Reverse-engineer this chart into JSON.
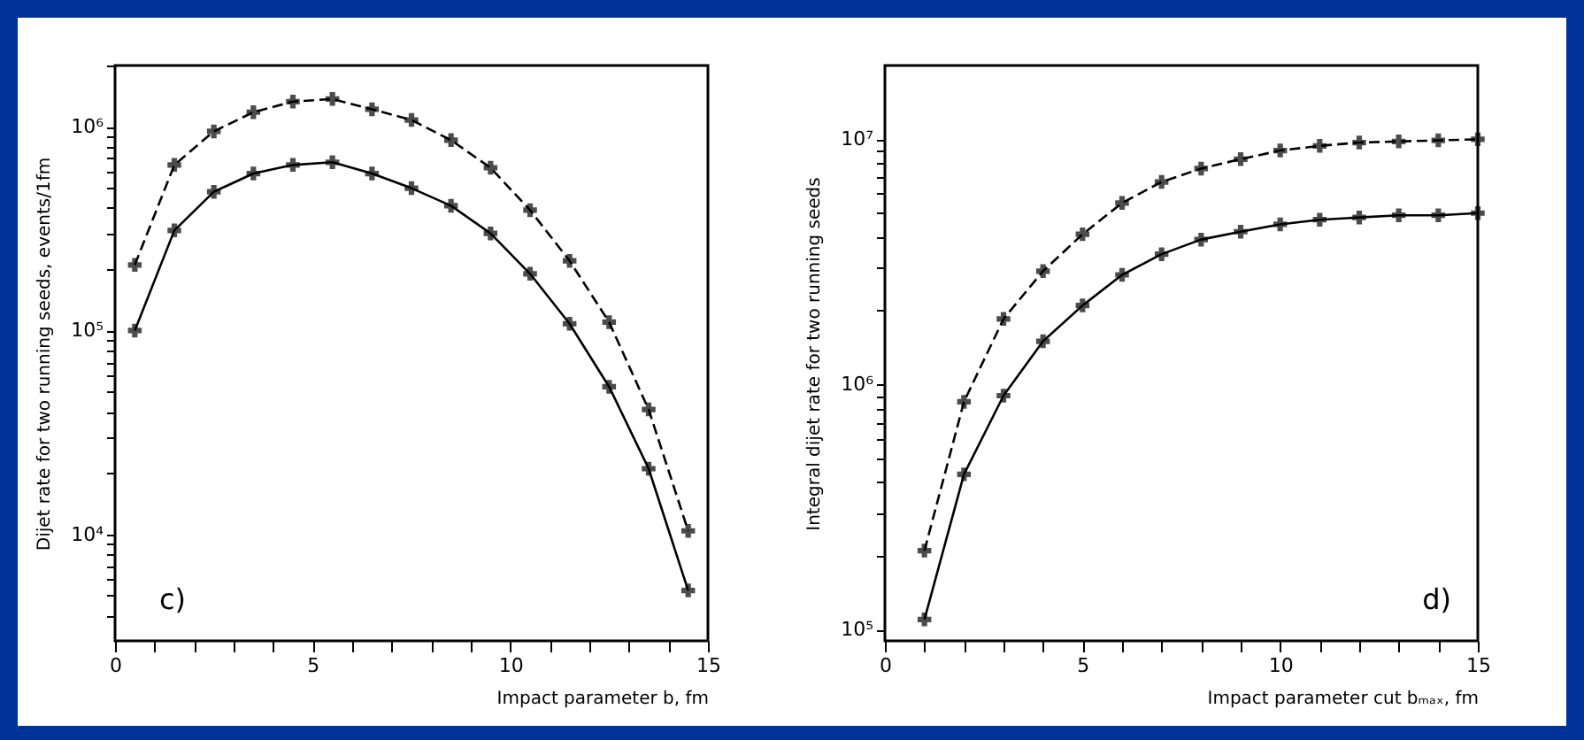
{
  "chart_data": [
    {
      "type": "line",
      "xlabel": "Impact parameter b, fm",
      "ylabel": "Dijet rate for two running seeds, events/1fm",
      "annotations": [
        "c)"
      ],
      "log": "y",
      "grid": false,
      "marker": "cross",
      "x": [
        0.5,
        1.5,
        2.5,
        3.5,
        4.5,
        5.5,
        6.5,
        7.5,
        8.5,
        9.5,
        10.5,
        11.5,
        12.5,
        13.5,
        14.5
      ],
      "series": [
        {
          "color": "#000000",
          "line_style": "dashed",
          "values": [
            210000,
            650000,
            950000,
            1180000,
            1330000,
            1370000,
            1220000,
            1080000,
            860000,
            630000,
            390000,
            220000,
            110000,
            41000,
            10400
          ]
        },
        {
          "color": "#000000",
          "line_style": "solid",
          "values": [
            100000,
            310000,
            480000,
            590000,
            650000,
            670000,
            590000,
            500000,
            410000,
            300000,
            190000,
            108000,
            53000,
            21000,
            5300
          ]
        }
      ],
      "xlim": [
        0,
        15
      ],
      "xticks": [
        0,
        {
          "value": 1,
          "label": null
        },
        {
          "value": 2,
          "label": null
        },
        {
          "value": 3,
          "label": null
        },
        {
          "value": 4,
          "label": null
        },
        5,
        {
          "value": 6,
          "label": null
        },
        {
          "value": 7,
          "label": null
        },
        {
          "value": 8,
          "label": null
        },
        {
          "value": 9,
          "label": null
        },
        10,
        {
          "value": 11,
          "label": null
        },
        {
          "value": 12,
          "label": null
        },
        {
          "value": 13,
          "label": null
        },
        {
          "value": 14,
          "label": null
        },
        15
      ],
      "ylim": [
        3000,
        2000000
      ],
      "yticks": [
        {
          "value": 4000,
          "label": null
        },
        {
          "value": 5000,
          "label": null
        },
        {
          "value": 6000,
          "label": null
        },
        {
          "value": 7000,
          "label": null
        },
        {
          "value": 8000,
          "label": null
        },
        {
          "value": 9000,
          "label": null
        },
        {
          "value": 10000,
          "label": "10⁴"
        },
        {
          "value": 20000,
          "label": null
        },
        {
          "value": 30000,
          "label": null
        },
        {
          "value": 40000,
          "label": null
        },
        {
          "value": 50000,
          "label": null
        },
        {
          "value": 60000,
          "label": null
        },
        {
          "value": 70000,
          "label": null
        },
        {
          "value": 80000,
          "label": null
        },
        {
          "value": 90000,
          "label": null
        },
        {
          "value": 100000,
          "label": "10⁵"
        },
        {
          "value": 200000,
          "label": null
        },
        {
          "value": 300000,
          "label": null
        },
        {
          "value": 400000,
          "label": null
        },
        {
          "value": 500000,
          "label": null
        },
        {
          "value": 600000,
          "label": null
        },
        {
          "value": 700000,
          "label": null
        },
        {
          "value": 800000,
          "label": null
        },
        {
          "value": 900000,
          "label": null
        },
        {
          "value": 1000000,
          "label": "10⁶"
        },
        {
          "value": 2000000,
          "label": null
        }
      ]
    },
    {
      "type": "line",
      "xlabel": "Impact parameter cut bₘₐₓ, fm",
      "ylabel": "Integral dijet rate for two running seeds",
      "annotations": [
        "d)"
      ],
      "log": "y",
      "grid": false,
      "marker": "cross",
      "x": [
        1,
        2,
        3,
        4,
        5,
        6,
        7,
        8,
        9,
        10,
        11,
        12,
        13,
        14,
        15
      ],
      "series": [
        {
          "color": "#000000",
          "line_style": "dashed",
          "values": [
            210000,
            850000,
            1850000,
            2900000,
            4100000,
            5500000,
            6700000,
            7600000,
            8300000,
            9000000,
            9400000,
            9700000,
            9800000,
            9900000,
            10000000
          ]
        },
        {
          "color": "#000000",
          "line_style": "solid",
          "values": [
            110000,
            430000,
            900000,
            1500000,
            2100000,
            2800000,
            3400000,
            3900000,
            4200000,
            4500000,
            4700000,
            4800000,
            4900000,
            4900000,
            5000000
          ]
        }
      ],
      "xlim": [
        0,
        15
      ],
      "xticks": [
        0,
        {
          "value": 1,
          "label": null
        },
        {
          "value": 2,
          "label": null
        },
        {
          "value": 3,
          "label": null
        },
        {
          "value": 4,
          "label": null
        },
        5,
        {
          "value": 6,
          "label": null
        },
        {
          "value": 7,
          "label": null
        },
        {
          "value": 8,
          "label": null
        },
        {
          "value": 9,
          "label": null
        },
        10,
        {
          "value": 11,
          "label": null
        },
        {
          "value": 12,
          "label": null
        },
        {
          "value": 13,
          "label": null
        },
        {
          "value": 14,
          "label": null
        },
        15
      ],
      "ylim": [
        90000,
        20000000
      ],
      "yticks": [
        {
          "value": 100000,
          "label": "10⁵"
        },
        {
          "value": 200000,
          "label": null
        },
        {
          "value": 300000,
          "label": null
        },
        {
          "value": 400000,
          "label": null
        },
        {
          "value": 500000,
          "label": null
        },
        {
          "value": 600000,
          "label": null
        },
        {
          "value": 700000,
          "label": null
        },
        {
          "value": 800000,
          "label": null
        },
        {
          "value": 900000,
          "label": null
        },
        {
          "value": 1000000,
          "label": "10⁶"
        },
        {
          "value": 2000000,
          "label": null
        },
        {
          "value": 3000000,
          "label": null
        },
        {
          "value": 4000000,
          "label": null
        },
        {
          "value": 5000000,
          "label": null
        },
        {
          "value": 6000000,
          "label": null
        },
        {
          "value": 7000000,
          "label": null
        },
        {
          "value": 8000000,
          "label": null
        },
        {
          "value": 9000000,
          "label": null
        },
        {
          "value": 10000000,
          "label": "10⁷"
        }
      ]
    }
  ]
}
